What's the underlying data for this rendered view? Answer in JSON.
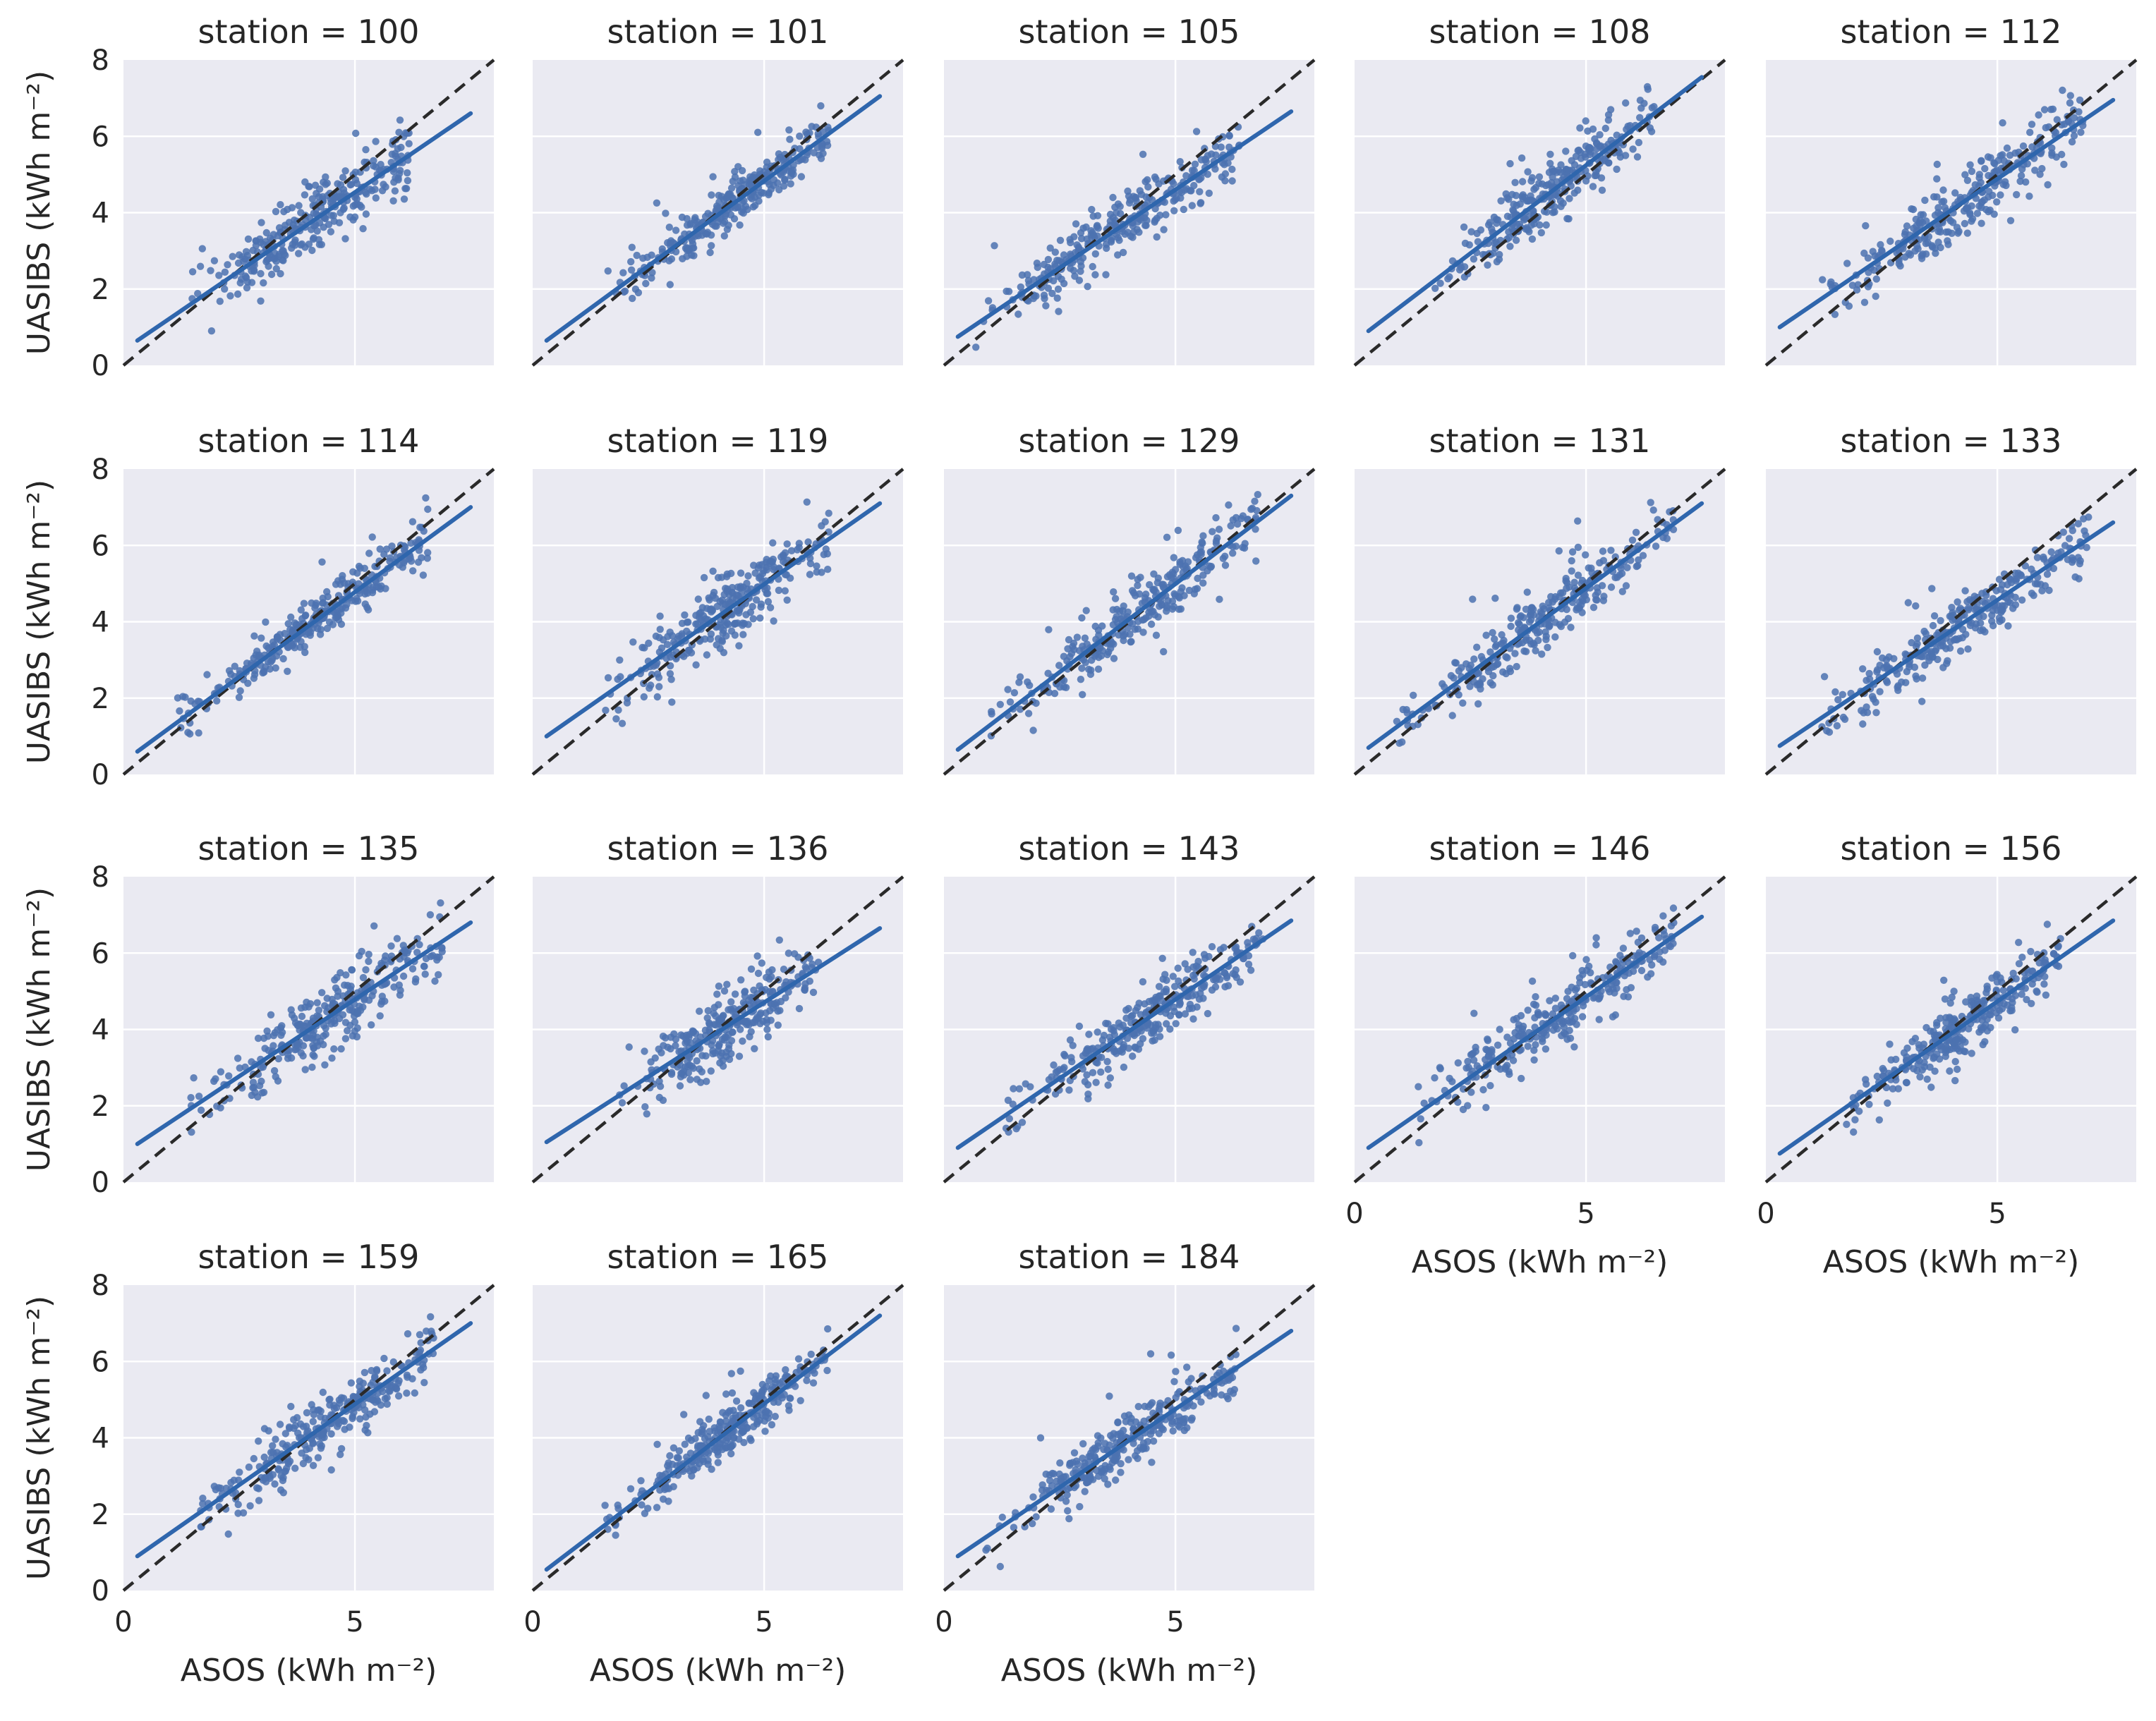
{
  "colors": {
    "panel_bg": "#eaeaf2",
    "grid": "#ffffff",
    "points": "#4c72b0",
    "fit_line": "#2f66ad",
    "identity_line": "#2a2a2a",
    "text": "#262626"
  },
  "chart_data": {
    "type": "scatter",
    "layout": "faceted grid, 4 rows x 5 columns, shared axes",
    "title_prefix": "station = ",
    "xlabel": "ASOS (kWh m⁻²)",
    "ylabel": "UASIBS (kWh m⁻²)",
    "xlim": [
      0,
      8
    ],
    "ylim": [
      0,
      8
    ],
    "xticks": [
      0,
      5
    ],
    "yticks": [
      0,
      2,
      4,
      6,
      8
    ],
    "grid": true,
    "identity_line": {
      "style": "dashed",
      "from": [
        0,
        0
      ],
      "to": [
        8,
        8
      ]
    },
    "points_note": "approx. 250-350 daily points per station clustered along the fit line",
    "panels": [
      {
        "station": "100",
        "fit": {
          "x0": 0.3,
          "y0": 0.65,
          "x1": 7.5,
          "y1": 6.6
        },
        "x_range": [
          1.4,
          6.2
        ],
        "spread": 0.42
      },
      {
        "station": "101",
        "fit": {
          "x0": 0.3,
          "y0": 0.65,
          "x1": 7.5,
          "y1": 7.05
        },
        "x_range": [
          1.6,
          6.4
        ],
        "spread": 0.32
      },
      {
        "station": "105",
        "fit": {
          "x0": 0.3,
          "y0": 0.75,
          "x1": 7.5,
          "y1": 6.65
        },
        "x_range": [
          0.6,
          6.4
        ],
        "spread": 0.4
      },
      {
        "station": "108",
        "fit": {
          "x0": 0.3,
          "y0": 0.9,
          "x1": 7.5,
          "y1": 7.55
        },
        "x_range": [
          1.7,
          6.5
        ],
        "spread": 0.42
      },
      {
        "station": "112",
        "fit": {
          "x0": 0.3,
          "y0": 1.0,
          "x1": 7.5,
          "y1": 6.95
        },
        "x_range": [
          1.2,
          6.9
        ],
        "spread": 0.42
      },
      {
        "station": "114",
        "fit": {
          "x0": 0.3,
          "y0": 0.6,
          "x1": 7.5,
          "y1": 7.0
        },
        "x_range": [
          1.1,
          6.6
        ],
        "spread": 0.3
      },
      {
        "station": "119",
        "fit": {
          "x0": 0.3,
          "y0": 1.0,
          "x1": 7.5,
          "y1": 7.1
        },
        "x_range": [
          1.5,
          6.4
        ],
        "spread": 0.45
      },
      {
        "station": "129",
        "fit": {
          "x0": 0.3,
          "y0": 0.65,
          "x1": 7.5,
          "y1": 7.3
        },
        "x_range": [
          1.0,
          6.8
        ],
        "spread": 0.4
      },
      {
        "station": "131",
        "fit": {
          "x0": 0.3,
          "y0": 0.7,
          "x1": 7.5,
          "y1": 7.1
        },
        "x_range": [
          0.9,
          6.9
        ],
        "spread": 0.35
      },
      {
        "station": "133",
        "fit": {
          "x0": 0.3,
          "y0": 0.75,
          "x1": 7.5,
          "y1": 6.6
        },
        "x_range": [
          1.2,
          7.0
        ],
        "spread": 0.38
      },
      {
        "station": "135",
        "fit": {
          "x0": 0.3,
          "y0": 1.0,
          "x1": 7.5,
          "y1": 6.8
        },
        "x_range": [
          1.4,
          6.9
        ],
        "spread": 0.45
      },
      {
        "station": "136",
        "fit": {
          "x0": 0.3,
          "y0": 1.05,
          "x1": 7.5,
          "y1": 6.65
        },
        "x_range": [
          1.8,
          6.2
        ],
        "spread": 0.45
      },
      {
        "station": "143",
        "fit": {
          "x0": 0.3,
          "y0": 0.9,
          "x1": 7.5,
          "y1": 6.85
        },
        "x_range": [
          1.3,
          6.9
        ],
        "spread": 0.38
      },
      {
        "station": "146",
        "fit": {
          "x0": 0.3,
          "y0": 0.9,
          "x1": 7.5,
          "y1": 6.95
        },
        "x_range": [
          1.2,
          6.9
        ],
        "spread": 0.38
      },
      {
        "station": "156",
        "fit": {
          "x0": 0.3,
          "y0": 0.75,
          "x1": 7.5,
          "y1": 6.85
        },
        "x_range": [
          1.6,
          6.4
        ],
        "spread": 0.38
      },
      {
        "station": "159",
        "fit": {
          "x0": 0.3,
          "y0": 0.9,
          "x1": 7.5,
          "y1": 7.0
        },
        "x_range": [
          1.6,
          6.7
        ],
        "spread": 0.4
      },
      {
        "station": "165",
        "fit": {
          "x0": 0.3,
          "y0": 0.55,
          "x1": 7.5,
          "y1": 7.2
        },
        "x_range": [
          1.5,
          6.4
        ],
        "spread": 0.3
      },
      {
        "station": "184",
        "fit": {
          "x0": 0.3,
          "y0": 0.9,
          "x1": 7.5,
          "y1": 6.8
        },
        "x_range": [
          0.9,
          6.4
        ],
        "spread": 0.38
      }
    ]
  }
}
